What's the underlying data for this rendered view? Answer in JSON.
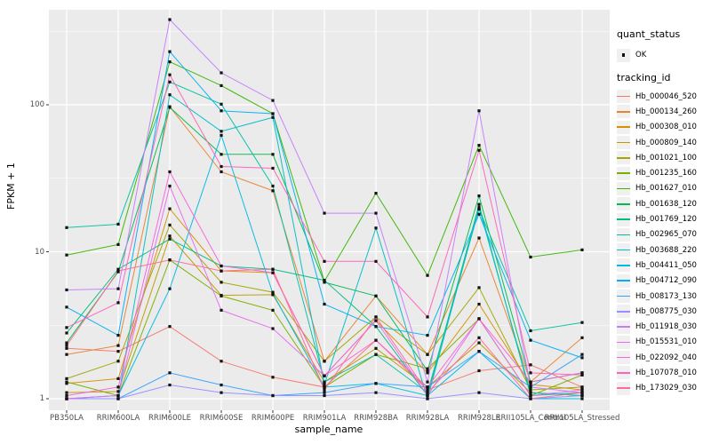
{
  "chart_data": {
    "type": "line",
    "title": "",
    "xlabel": "sample_name",
    "ylabel": "FPKM + 1",
    "y_scale": "log10",
    "y_ticks": [
      1,
      10,
      100
    ],
    "y_tick_labels": [
      "1",
      "10",
      "100"
    ],
    "ylim": [
      0.85,
      460
    ],
    "grid": "on",
    "legend_position": "right",
    "panel_bg": "#EBEBEB",
    "grid_color": "#FFFFFF",
    "marker": "small-black-square",
    "categories": [
      "PB350LA",
      "RRIM600LA",
      "RRIM600LE",
      "RRIM600SE",
      "RRIM600PE",
      "RRIM901LA",
      "RRIM928BA",
      "RRIM928LA",
      "RRIM928LE",
      "RRII105LA_Control",
      "RRII105LA_Stressed"
    ],
    "series": [
      {
        "name": "Hb_000046_520",
        "color": "#F8766D",
        "values": [
          2.2,
          2.1,
          3.1,
          1.8,
          1.4,
          1.2,
          2.5,
          1.15,
          1.55,
          1.7,
          1.2
        ]
      },
      {
        "name": "Hb_000134_260",
        "color": "#EA8331",
        "values": [
          2.0,
          2.3,
          97,
          35,
          26,
          1.8,
          5.0,
          2.0,
          12.4,
          1.3,
          2.6
        ]
      },
      {
        "name": "Hb_000308_010",
        "color": "#D89000",
        "values": [
          1.27,
          1.37,
          19.6,
          7.4,
          7.2,
          1.43,
          3.4,
          1.5,
          4.4,
          1.25,
          1.15
        ]
      },
      {
        "name": "Hb_000809_140",
        "color": "#C09B00",
        "values": [
          1.1,
          1.12,
          12.8,
          5.05,
          5.1,
          1.3,
          2.2,
          1.2,
          2.4,
          1.1,
          1.05
        ]
      },
      {
        "name": "Hb_001021_100",
        "color": "#A3A500",
        "values": [
          1.37,
          1.8,
          15.2,
          6.2,
          5.3,
          1.8,
          3.6,
          2.0,
          5.7,
          1.15,
          1.2
        ]
      },
      {
        "name": "Hb_001235_160",
        "color": "#7CAE00",
        "values": [
          1.3,
          1.05,
          8.8,
          5.0,
          4.0,
          1.2,
          2.0,
          1.6,
          3.5,
          1.05,
          1.45
        ]
      },
      {
        "name": "Hb_001627_010",
        "color": "#39B600",
        "values": [
          9.5,
          11.2,
          196,
          135,
          87,
          6.3,
          25,
          6.9,
          53,
          9.2,
          10.3
        ]
      },
      {
        "name": "Hb_001638_120",
        "color": "#00BB4E",
        "values": [
          2.4,
          7.3,
          96,
          46,
          46,
          6.2,
          5.0,
          1.55,
          24,
          1.3,
          1.5
        ]
      },
      {
        "name": "Hb_001769_120",
        "color": "#00BF7D",
        "values": [
          2.8,
          7.6,
          12.2,
          8.0,
          7.6,
          6.4,
          3.1,
          1.05,
          21,
          1.05,
          1.1
        ]
      },
      {
        "name": "Hb_002965_070",
        "color": "#00C1A3",
        "values": [
          14.6,
          15.4,
          143,
          101,
          28,
          1.3,
          2.0,
          1.1,
          19.5,
          2.9,
          3.3
        ]
      },
      {
        "name": "Hb_003688_220",
        "color": "#00BFC4",
        "values": [
          1.0,
          1.0,
          117,
          66,
          82,
          1.25,
          14.5,
          1.0,
          20,
          1.1,
          1.05
        ]
      },
      {
        "name": "Hb_004411_050",
        "color": "#00BAE0",
        "values": [
          1.0,
          1.05,
          5.6,
          62,
          5.2,
          1.2,
          1.27,
          1.05,
          2.1,
          1.0,
          1.0
        ]
      },
      {
        "name": "Hb_004712_090",
        "color": "#00B0F6",
        "values": [
          4.2,
          2.7,
          230,
          91,
          87,
          4.4,
          3.1,
          2.7,
          18,
          2.5,
          1.9
        ]
      },
      {
        "name": "Hb_008173_130",
        "color": "#35A2FF",
        "values": [
          1.0,
          1.0,
          1.5,
          1.24,
          1.05,
          1.1,
          1.27,
          1.2,
          2.1,
          1.2,
          2.0
        ]
      },
      {
        "name": "Hb_008775_030",
        "color": "#9590FF",
        "values": [
          1.0,
          1.0,
          1.24,
          1.1,
          1.05,
          1.05,
          1.1,
          1.0,
          1.1,
          1.0,
          1.05
        ]
      },
      {
        "name": "Hb_011918_030",
        "color": "#C77CFF",
        "values": [
          5.5,
          5.6,
          380,
          165,
          107,
          18.3,
          18.3,
          1.3,
          91,
          1.2,
          1.1
        ]
      },
      {
        "name": "Hb_015531_010",
        "color": "#E76BF3",
        "values": [
          1.0,
          1.05,
          28,
          4.0,
          3.0,
          1.43,
          3.4,
          1.05,
          3.5,
          1.05,
          1.15
        ]
      },
      {
        "name": "Hb_022092_040",
        "color": "#FA62DB",
        "values": [
          1.05,
          1.2,
          35,
          8.0,
          7.2,
          1.43,
          2.5,
          1.2,
          3.5,
          1.3,
          1.5
        ]
      },
      {
        "name": "Hb_107078_010",
        "color": "#FF62BC",
        "values": [
          3.05,
          4.5,
          160,
          38,
          37,
          8.6,
          8.6,
          3.6,
          49,
          1.5,
          1.45
        ]
      },
      {
        "name": "Hb_173029_030",
        "color": "#FF6A98",
        "values": [
          2.3,
          7.4,
          8.8,
          7.4,
          7.6,
          1.15,
          3.6,
          1.1,
          2.6,
          1.0,
          1.1
        ]
      }
    ]
  },
  "legend": {
    "quant_status": {
      "title": "quant_status",
      "items": [
        {
          "label": "OK",
          "symbol": "black-point"
        }
      ]
    },
    "tracking_id": {
      "title": "tracking_id"
    }
  }
}
